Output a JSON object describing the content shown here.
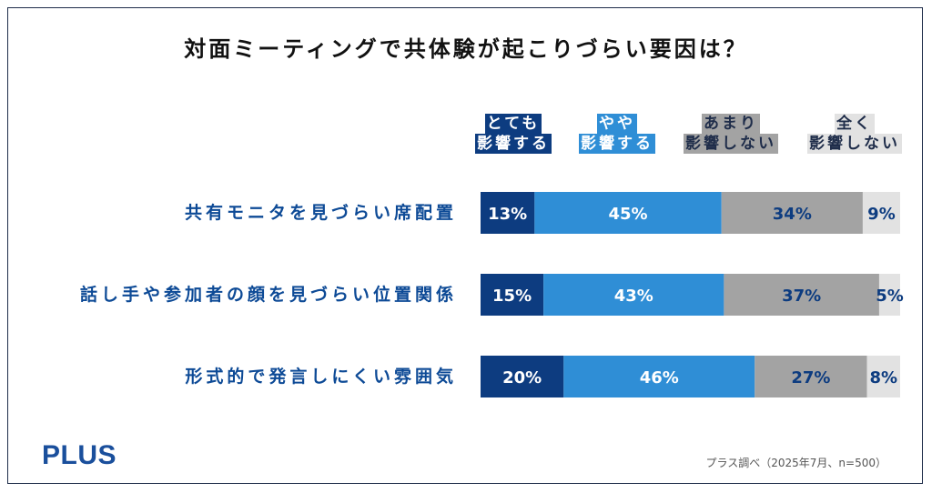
{
  "title": "対面ミーティングで共体験が起こりづらい要因は？",
  "legend": [
    {
      "line1": "とても",
      "line2": "影響する",
      "color": "#0d3c80",
      "text_color": "#ffffff"
    },
    {
      "line1": "やや",
      "line2": "影響する",
      "color": "#2f8ed6",
      "text_color": "#ffffff"
    },
    {
      "line1": "あまり",
      "line2": "影響しない",
      "color": "#a3a3a3",
      "text_color": "#1f2d4a"
    },
    {
      "line1": "全く",
      "line2": "影響しない",
      "color": "#e2e2e2",
      "text_color": "#1f2d4a"
    }
  ],
  "rows": [
    {
      "label": "共有モニタを見づらい席配置"
    },
    {
      "label": "話し手や参加者の顔を見づらい位置関係"
    },
    {
      "label": "形式的で発言しにくい雰囲気"
    }
  ],
  "chart_data": {
    "type": "bar",
    "orientation": "horizontal-stacked-100",
    "title": "対面ミーティングで共体験が起こりづらい要因は？",
    "categories": [
      "共有モニタを見づらい席配置",
      "話し手や参加者の顔を見づらい位置関係",
      "形式的で発言しにくい雰囲気"
    ],
    "series": [
      {
        "name": "とても影響する",
        "values": [
          13,
          15,
          20
        ],
        "color": "#0d3c80",
        "label_color": "#ffffff"
      },
      {
        "name": "やや影響する",
        "values": [
          45,
          43,
          46
        ],
        "color": "#2f8ed6",
        "label_color": "#ffffff"
      },
      {
        "name": "あまり影響しない",
        "values": [
          34,
          37,
          27
        ],
        "color": "#a3a3a3",
        "label_color": "#0d3c80"
      },
      {
        "name": "全く影響しない",
        "values": [
          9,
          5,
          8
        ],
        "color": "#e2e2e2",
        "label_color": "#0d3c80"
      }
    ],
    "value_suffix": "%",
    "xlim": [
      0,
      100
    ],
    "legend_position": "top"
  },
  "brand": "PLUS",
  "source": "プラス調べ（2025年7月、n=500）"
}
